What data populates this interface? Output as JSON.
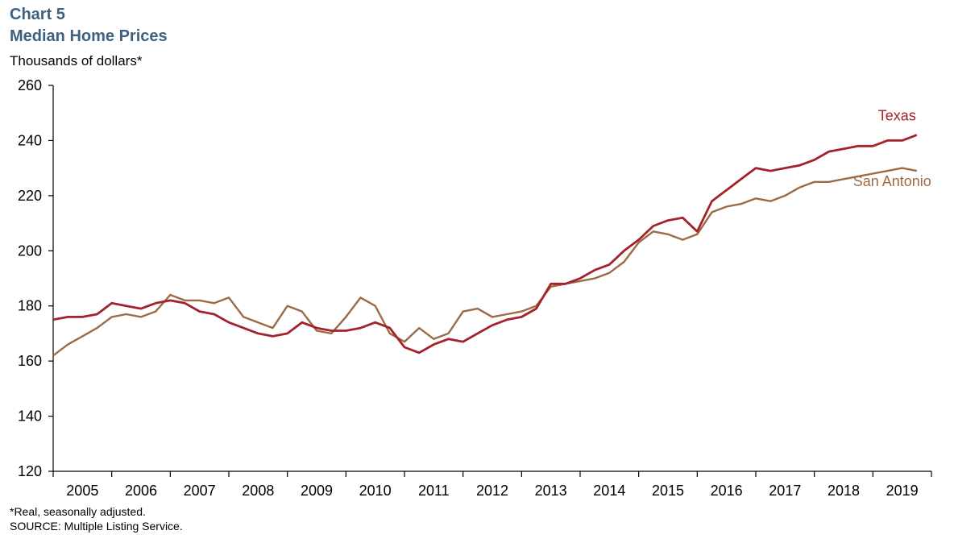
{
  "header": {
    "chart_number": "Chart 5",
    "title": "Median Home Prices",
    "units": "Thousands  of dollars*"
  },
  "footnotes": {
    "note": "*Real, seasonally  adjusted.",
    "source": "SOURCE:  Multiple  Listing Service."
  },
  "colors": {
    "texas": "#a3222b",
    "san_antonio": "#9c6b45",
    "axis": "#000000",
    "heading": "#3f6180"
  },
  "chart_data": {
    "type": "line",
    "title": "Median Home Prices",
    "ylabel": "Thousands  of dollars*",
    "ylim": [
      120,
      260
    ],
    "yticks": [
      120,
      140,
      160,
      180,
      200,
      220,
      240,
      260
    ],
    "xlim": [
      2005,
      2020
    ],
    "x_tick_labels": [
      "2005",
      "2006",
      "2007",
      "2008",
      "2009",
      "2010",
      "2011",
      "2012",
      "2013",
      "2014",
      "2015",
      "2016",
      "2017",
      "2018",
      "2019"
    ],
    "grid": false,
    "legend": "inline labels at line ends",
    "series": [
      {
        "name": "Texas",
        "label_position": "top-right",
        "x": [
          2005.0,
          2005.25,
          2005.5,
          2005.75,
          2006.0,
          2006.25,
          2006.5,
          2006.75,
          2007.0,
          2007.25,
          2007.5,
          2007.75,
          2008.0,
          2008.25,
          2008.5,
          2008.75,
          2009.0,
          2009.25,
          2009.5,
          2009.75,
          2010.0,
          2010.25,
          2010.5,
          2010.75,
          2011.0,
          2011.25,
          2011.5,
          2011.75,
          2012.0,
          2012.25,
          2012.5,
          2012.75,
          2013.0,
          2013.25,
          2013.5,
          2013.75,
          2014.0,
          2014.25,
          2014.5,
          2014.75,
          2015.0,
          2015.25,
          2015.5,
          2015.75,
          2016.0,
          2016.25,
          2016.5,
          2016.75,
          2017.0,
          2017.25,
          2017.5,
          2017.75,
          2018.0,
          2018.25,
          2018.5,
          2018.75,
          2019.0,
          2019.25,
          2019.5,
          2019.75
        ],
        "values": [
          175,
          176,
          176,
          177,
          181,
          180,
          179,
          181,
          182,
          181,
          178,
          177,
          174,
          172,
          170,
          169,
          170,
          174,
          172,
          171,
          171,
          172,
          174,
          172,
          165,
          163,
          166,
          168,
          167,
          170,
          173,
          175,
          176,
          179,
          188,
          188,
          190,
          193,
          195,
          200,
          204,
          209,
          211,
          212,
          207,
          218,
          222,
          226,
          230,
          229,
          230,
          231,
          233,
          236,
          237,
          238,
          238,
          240,
          240,
          242
        ]
      },
      {
        "name": "San Antonio",
        "label_position": "right",
        "x": [
          2005.0,
          2005.25,
          2005.5,
          2005.75,
          2006.0,
          2006.25,
          2006.5,
          2006.75,
          2007.0,
          2007.25,
          2007.5,
          2007.75,
          2008.0,
          2008.25,
          2008.5,
          2008.75,
          2009.0,
          2009.25,
          2009.5,
          2009.75,
          2010.0,
          2010.25,
          2010.5,
          2010.75,
          2011.0,
          2011.25,
          2011.5,
          2011.75,
          2012.0,
          2012.25,
          2012.5,
          2012.75,
          2013.0,
          2013.25,
          2013.5,
          2013.75,
          2014.0,
          2014.25,
          2014.5,
          2014.75,
          2015.0,
          2015.25,
          2015.5,
          2015.75,
          2016.0,
          2016.25,
          2016.5,
          2016.75,
          2017.0,
          2017.25,
          2017.5,
          2017.75,
          2018.0,
          2018.25,
          2018.5,
          2018.75,
          2019.0,
          2019.25,
          2019.5,
          2019.75
        ],
        "values": [
          162,
          166,
          169,
          172,
          176,
          177,
          176,
          178,
          184,
          182,
          182,
          181,
          183,
          176,
          174,
          172,
          180,
          178,
          171,
          170,
          176,
          183,
          180,
          170,
          167,
          172,
          168,
          170,
          178,
          179,
          176,
          177,
          178,
          180,
          187,
          188,
          189,
          190,
          192,
          196,
          203,
          207,
          206,
          204,
          206,
          214,
          216,
          217,
          219,
          218,
          220,
          223,
          225,
          225,
          226,
          227,
          228,
          229,
          230,
          229
        ]
      }
    ]
  }
}
